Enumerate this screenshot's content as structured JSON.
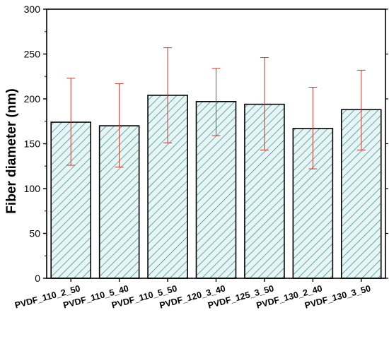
{
  "chart_data": {
    "type": "bar",
    "title": "",
    "xlabel": "",
    "ylabel": "Fiber diameter (nm)",
    "ylim": [
      0,
      300
    ],
    "yticks": [
      0,
      50,
      100,
      150,
      200,
      250,
      300
    ],
    "categories": [
      "PVDF_110_2_50",
      "PVDF_110_5_40",
      "PVDF_110_5_50",
      "PVDF_120_3_40",
      "PVDF_125_3_50",
      "PVDF_130_2_40",
      "PVDF_130_3_50"
    ],
    "values": [
      174,
      170,
      204,
      197,
      194,
      167,
      188
    ],
    "error_low": [
      126,
      124,
      151,
      159,
      143,
      122,
      143
    ],
    "error_high": [
      223,
      217,
      257,
      234,
      246,
      213,
      232
    ],
    "grid": false,
    "colors": {
      "bar_fill": "#e6f5f5",
      "hatch": "#2e7d7d",
      "bar_edge": "#000000",
      "error_bar": "#c0392b"
    }
  }
}
